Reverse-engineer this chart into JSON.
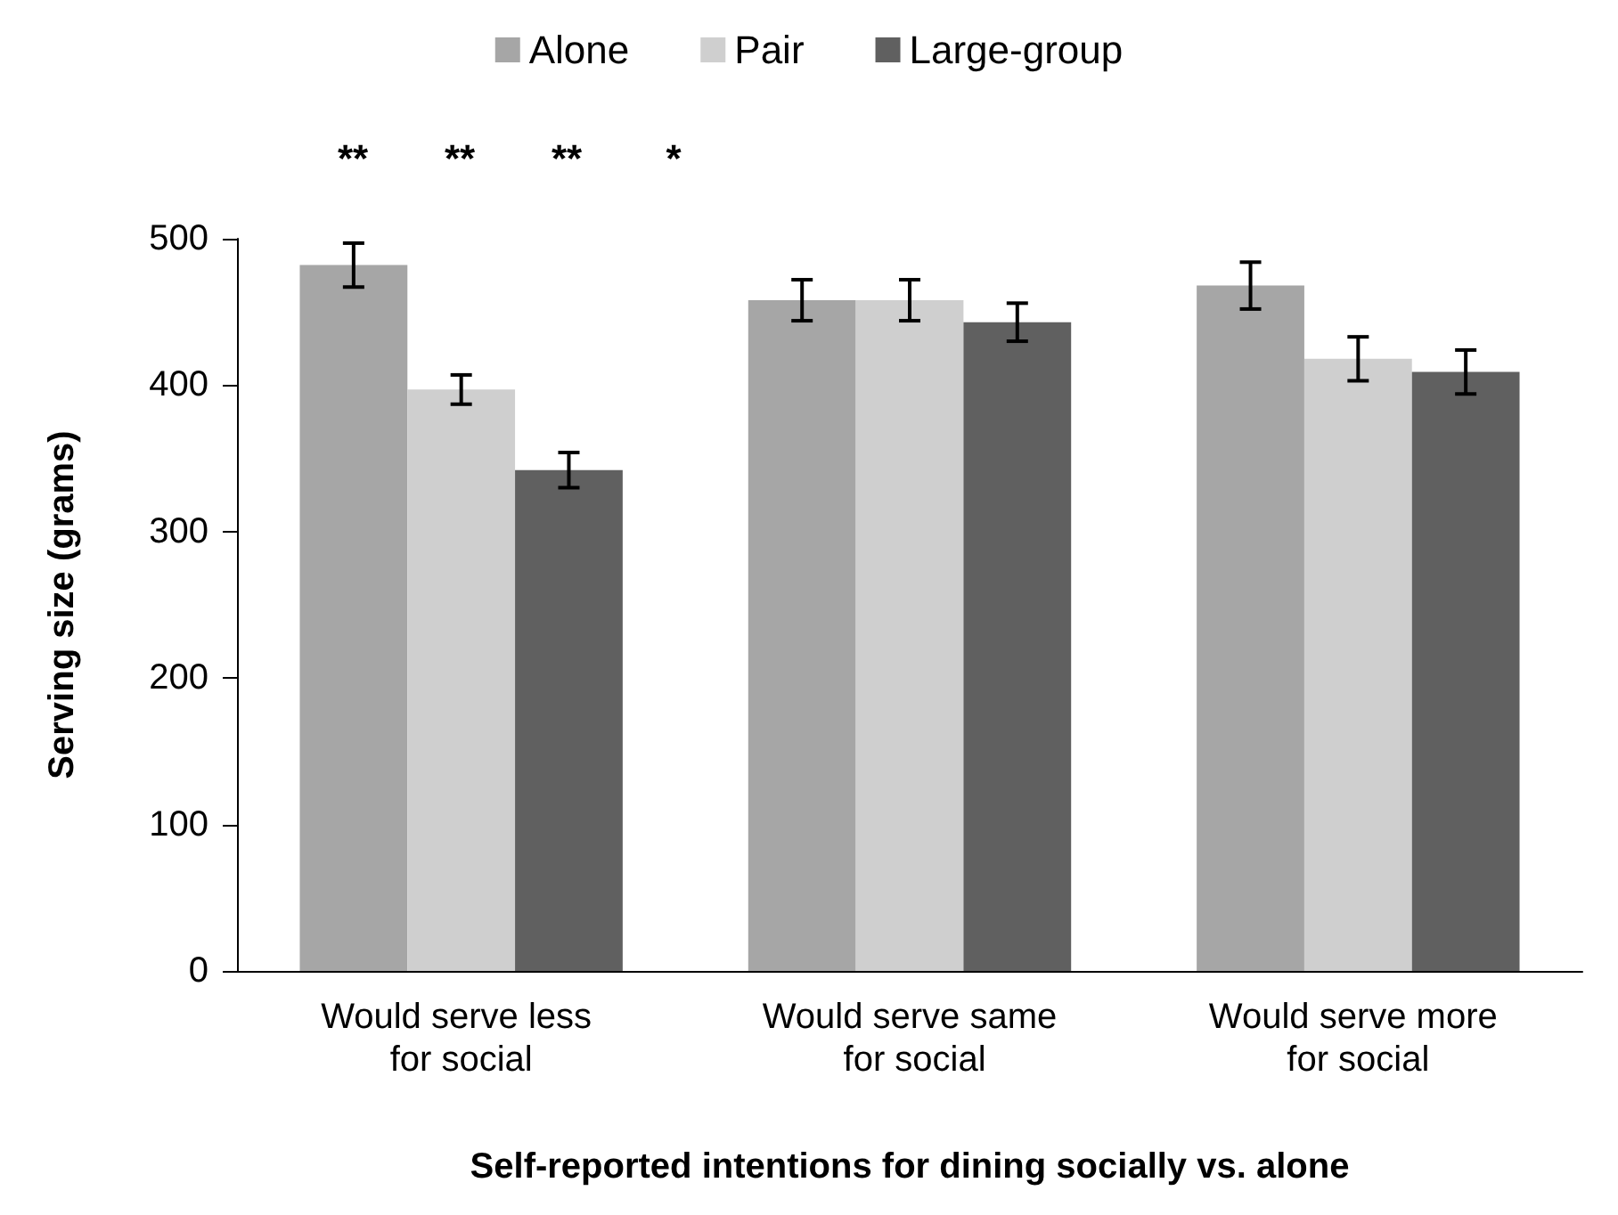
{
  "chart_data": {
    "type": "bar",
    "xlabel": "Self-reported intentions for dining socially vs. alone",
    "ylabel": "Serving size (grams)",
    "categories": [
      "Would serve less for social",
      "Would serve same for social",
      "Would serve more for social"
    ],
    "series": [
      {
        "name": "Alone",
        "color": "#a6a6a6",
        "values": [
          482,
          458,
          468
        ],
        "errors": [
          15,
          14,
          16
        ]
      },
      {
        "name": "Pair",
        "color": "#cfcfcf",
        "values": [
          397,
          458,
          418
        ],
        "errors": [
          10,
          14,
          15
        ]
      },
      {
        "name": "Large-group",
        "color": "#606060",
        "values": [
          342,
          443,
          409
        ],
        "errors": [
          12,
          13,
          15
        ]
      }
    ],
    "ylim": [
      0,
      500
    ],
    "yticks": [
      0,
      100,
      200,
      300,
      400,
      500
    ],
    "grid": false,
    "legend": "top",
    "annotations": [
      "**",
      "**",
      "**",
      "*"
    ]
  }
}
